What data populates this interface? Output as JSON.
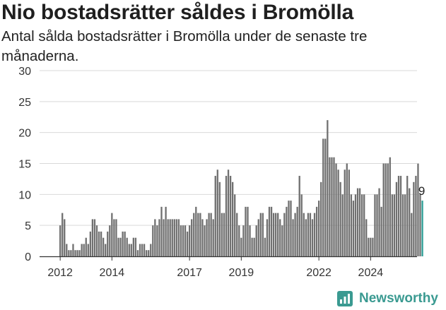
{
  "title": "Nio bostadsrätter såldes i Bromölla",
  "subtitle": "Antal sålda bostadsrätter i Bromölla under de senaste tre månaderna.",
  "brand": {
    "name": "Newsworthy",
    "logo_icon": "newsworthy-chart-logo-icon"
  },
  "colors": {
    "bars": "#707070",
    "highlight": "#2a9d94",
    "grid": "#d9d9d9",
    "axis": "#333333",
    "brand": "#3a9a91"
  },
  "chart_data": {
    "type": "bar",
    "title": "Nio bostadsrätter såldes i Bromölla",
    "subtitle": "Antal sålda bostadsrätter i Bromölla under de senaste tre månaderna.",
    "xlabel": "",
    "ylabel": "",
    "ylim": [
      0,
      30
    ],
    "y_ticks": [
      0,
      5,
      10,
      15,
      20,
      25,
      30
    ],
    "x_ticks": [
      "2012",
      "2014",
      "2017",
      "2019",
      "2022",
      "2024"
    ],
    "grid": true,
    "x_start": "2012-01",
    "last_label": "9",
    "values": [
      5,
      7,
      6,
      2,
      1,
      1,
      2,
      1,
      1,
      1,
      2,
      2,
      3,
      2,
      4,
      6,
      6,
      5,
      4,
      4,
      3,
      2,
      4,
      5,
      7,
      6,
      6,
      3,
      3,
      4,
      4,
      3,
      2,
      2,
      3,
      3,
      1,
      2,
      2,
      2,
      1,
      1,
      2,
      5,
      6,
      5,
      6,
      8,
      6,
      8,
      6,
      6,
      6,
      6,
      6,
      6,
      5,
      5,
      5,
      4,
      5,
      6,
      7,
      8,
      7,
      7,
      6,
      5,
      6,
      7,
      7,
      6,
      13,
      14,
      12,
      7,
      7,
      13,
      14,
      13,
      12,
      10,
      7,
      5,
      3,
      5,
      8,
      8,
      5,
      3,
      3,
      5,
      6,
      7,
      7,
      3,
      6,
      8,
      8,
      7,
      7,
      7,
      6,
      5,
      7,
      8,
      9,
      9,
      6,
      7,
      8,
      13,
      10,
      7,
      6,
      7,
      7,
      6,
      7,
      8,
      9,
      12,
      19,
      19,
      22,
      16,
      16,
      16,
      15,
      14,
      12,
      10,
      14,
      15,
      14,
      10,
      9,
      10,
      11,
      11,
      10,
      10,
      6,
      3,
      3,
      3,
      10,
      10,
      11,
      8,
      15,
      15,
      15,
      16,
      10,
      10,
      12,
      13,
      13,
      10,
      10,
      13,
      11,
      7,
      12,
      13,
      15,
      10,
      9
    ]
  }
}
